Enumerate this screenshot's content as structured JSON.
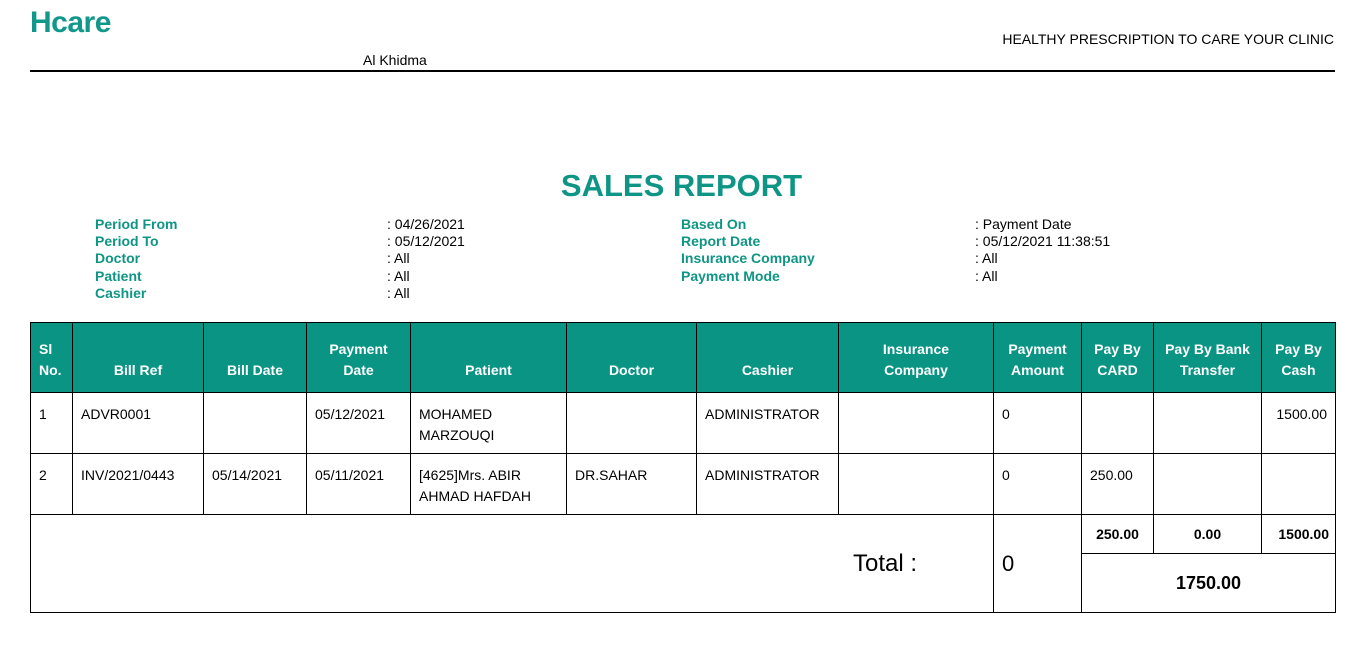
{
  "header": {
    "logo": "Hcare",
    "clinic": "Al Khidma",
    "tagline": "HEALTHY PRESCRIPTION TO CARE YOUR CLINIC"
  },
  "report": {
    "title": "SALES REPORT",
    "filters_left": [
      {
        "label": "Period From",
        "value": ": 04/26/2021"
      },
      {
        "label": "Period To",
        "value": ": 05/12/2021"
      },
      {
        "label": "Doctor",
        "value": ": All"
      },
      {
        "label": "Patient",
        "value": ": All"
      },
      {
        "label": "Cashier",
        "value": ": All"
      }
    ],
    "filters_right": [
      {
        "label": "Based On",
        "value": ": Payment Date"
      },
      {
        "label": "Report Date",
        "value": ": 05/12/2021 11:38:51"
      },
      {
        "label": "Insurance Company",
        "value": ": All"
      },
      {
        "label": "Payment Mode",
        "value": ": All"
      }
    ]
  },
  "table": {
    "columns": [
      "Sl No.",
      "Bill Ref",
      "Bill Date",
      "Payment Date",
      "Patient",
      "Doctor",
      "Cashier",
      "Insurance Company",
      "Payment Amount",
      "Pay By CARD",
      "Pay By Bank Transfer",
      "Pay By Cash"
    ],
    "rows": [
      [
        "1",
        "ADVR0001",
        "",
        "05/12/2021",
        "MOHAMED MARZOUQI",
        "",
        "ADMINISTRATOR",
        "",
        "0",
        "",
        "",
        "1500.00"
      ],
      [
        "2",
        "INV/2021/0443",
        "05/14/2021",
        "05/11/2021",
        "[4625]Mrs. ABIR AHMAD HAFDAH",
        "DR.SAHAR",
        "ADMINISTRATOR",
        "",
        "0",
        "250.00",
        "",
        ""
      ]
    ],
    "total": {
      "label": "Total :",
      "payment_amount": "0",
      "card": "250.00",
      "bank_transfer": "0.00",
      "cash": "1500.00",
      "grand_total": "1750.00"
    }
  }
}
